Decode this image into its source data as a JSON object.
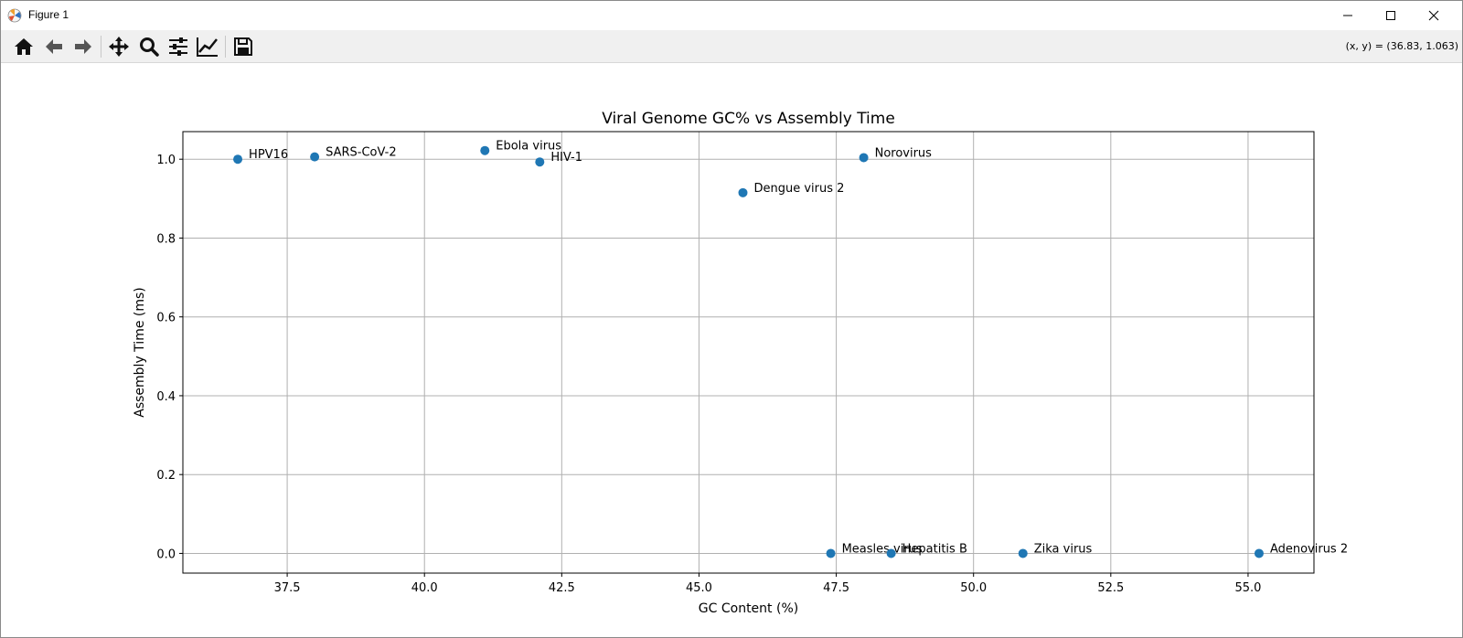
{
  "window": {
    "title": "Figure 1",
    "icons": {
      "app": "matplotlib-icon",
      "minimize": "minimize-icon",
      "maximize": "maximize-icon",
      "close": "close-icon"
    }
  },
  "toolbar": {
    "tools": [
      {
        "name": "home",
        "icon": "home-icon"
      },
      {
        "name": "back",
        "icon": "back-arrow-icon"
      },
      {
        "name": "forward",
        "icon": "forward-arrow-icon"
      },
      {
        "name": "pan",
        "icon": "pan-move-icon"
      },
      {
        "name": "zoom",
        "icon": "zoom-magnifier-icon"
      },
      {
        "name": "configure-subplots",
        "icon": "sliders-icon"
      },
      {
        "name": "edit-axes",
        "icon": "line-chart-icon"
      },
      {
        "name": "save",
        "icon": "save-disk-icon"
      }
    ],
    "coords": "(x, y) = (36.83, 1.063)"
  },
  "chart_data": {
    "type": "scatter",
    "title": "Viral Genome GC% vs Assembly Time",
    "xlabel": "GC Content (%)",
    "ylabel": "Assembly Time (ms)",
    "xlim": [
      35.6,
      56.2
    ],
    "ylim": [
      -0.05,
      1.07
    ],
    "xticks": [
      37.5,
      40.0,
      42.5,
      45.0,
      47.5,
      50.0,
      52.5,
      55.0
    ],
    "xtick_labels": [
      "37.5",
      "40.0",
      "42.5",
      "45.0",
      "47.5",
      "50.0",
      "52.5",
      "55.0"
    ],
    "yticks": [
      0.0,
      0.2,
      0.4,
      0.6,
      0.8,
      1.0
    ],
    "ytick_labels": [
      "0.0",
      "0.2",
      "0.4",
      "0.6",
      "0.8",
      "1.0"
    ],
    "grid": true,
    "marker_color": "#1f77b4",
    "points": [
      {
        "label": "HPV16",
        "x": 36.6,
        "y": 1.0
      },
      {
        "label": "SARS-CoV-2",
        "x": 38.0,
        "y": 1.006
      },
      {
        "label": "Ebola virus",
        "x": 41.1,
        "y": 1.022
      },
      {
        "label": "HIV-1",
        "x": 42.1,
        "y": 0.993
      },
      {
        "label": "Dengue virus 2",
        "x": 45.8,
        "y": 0.915
      },
      {
        "label": "Norovirus",
        "x": 48.0,
        "y": 1.004
      },
      {
        "label": "Measles virus",
        "x": 47.4,
        "y": 0.0
      },
      {
        "label": "Hepatitis B",
        "x": 48.5,
        "y": 0.0
      },
      {
        "label": "Zika virus",
        "x": 50.9,
        "y": 0.0
      },
      {
        "label": "Adenovirus 2",
        "x": 55.2,
        "y": 0.0
      }
    ]
  }
}
